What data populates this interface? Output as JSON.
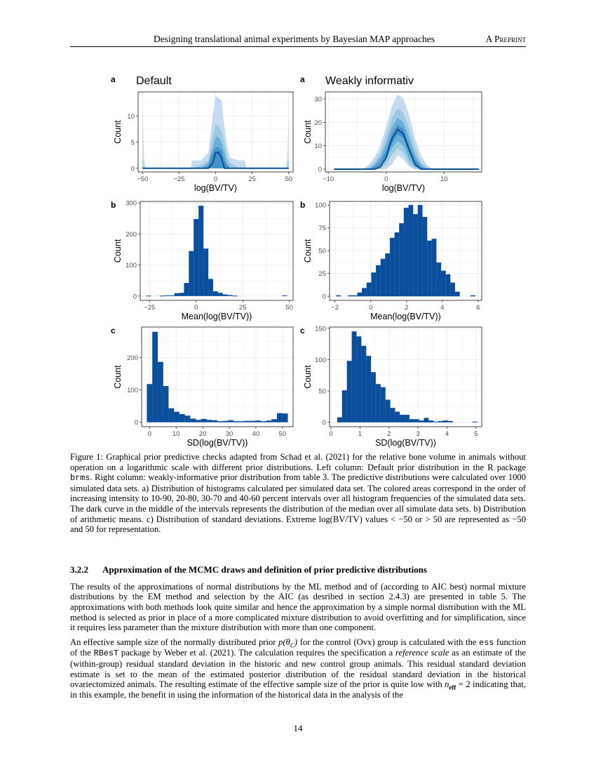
{
  "header": {
    "title": "Designing translational animal experiments by Bayesian MAP approaches",
    "tag": "A Preprint"
  },
  "colors": {
    "bar": "#0b4f9c",
    "bands": [
      "#c6dbef",
      "#9ecae1",
      "#6baed6",
      "#4292c6"
    ],
    "median": "#08519c"
  },
  "chart_data": [
    {
      "type": "area",
      "panel": "a",
      "title": "Default",
      "xlabel": "log(BV/TV)",
      "ylabel": "Count",
      "xlim": [
        -53,
        53
      ],
      "ylim": [
        -0.7,
        14.6
      ],
      "xticks": [
        -50,
        -25,
        0,
        25,
        50
      ],
      "xtick_labels": [
        "−50",
        "−25",
        "0",
        "25",
        "50"
      ],
      "yticks": [
        0,
        5,
        10
      ],
      "ytick_labels": [
        "0",
        "5",
        "10"
      ],
      "x": [
        -50,
        -49,
        -48,
        -17,
        -16,
        -10,
        -5,
        -2,
        0,
        2,
        4,
        6,
        8,
        10,
        16,
        20,
        21,
        48,
        49,
        50
      ],
      "bands": [
        {
          "interval": "10-90",
          "upper": [
            12,
            2,
            0,
            0,
            1.5,
            1.5,
            3,
            10,
            13.8,
            13.5,
            13,
            8,
            4,
            2,
            1.5,
            1.5,
            0,
            0,
            2,
            10
          ],
          "lower": [
            0,
            0,
            0,
            0,
            0,
            0,
            0,
            0,
            0,
            0,
            0,
            0,
            0,
            0,
            0,
            0,
            0,
            0,
            0,
            0
          ]
        },
        {
          "interval": "20-80",
          "upper": [
            2,
            0,
            0,
            0,
            0,
            0.7,
            1.5,
            6,
            8.5,
            8,
            7,
            5,
            2,
            1,
            0,
            0,
            0,
            0,
            0,
            2
          ],
          "lower": [
            0,
            0,
            0,
            0,
            0,
            0,
            0,
            0,
            0,
            0,
            0,
            0,
            0,
            0,
            0,
            0,
            0,
            0,
            0,
            0
          ]
        },
        {
          "interval": "30-70",
          "upper": [
            0,
            0,
            0,
            0,
            0,
            0,
            1,
            4,
            6,
            6,
            5,
            3,
            1,
            0,
            0,
            0,
            0,
            0,
            0,
            0
          ],
          "lower": [
            0,
            0,
            0,
            0,
            0,
            0,
            0,
            0,
            0,
            0,
            0,
            0,
            0,
            0,
            0,
            0,
            0,
            0,
            0,
            0
          ]
        },
        {
          "interval": "40-60",
          "upper": [
            0,
            0,
            0,
            0,
            0,
            0,
            0.5,
            3,
            4,
            4,
            3.5,
            1.5,
            0.5,
            0,
            0,
            0,
            0,
            0,
            0,
            0
          ],
          "lower": [
            0,
            0,
            0,
            0,
            0,
            0,
            0,
            0,
            0,
            0,
            0,
            0,
            0,
            0,
            0,
            0,
            0,
            0,
            0,
            0
          ]
        }
      ],
      "median": [
        0,
        0,
        0,
        0,
        0,
        0,
        0,
        1,
        3,
        3,
        2,
        0,
        0,
        0,
        0,
        0,
        0,
        0,
        0,
        0
      ]
    },
    {
      "type": "area",
      "panel": "a",
      "title": "Weakly informativ",
      "xlabel": "log(BV/TV)",
      "ylabel": "Count",
      "xlim": [
        -10.5,
        16.5
      ],
      "ylim": [
        -1.2,
        33
      ],
      "xticks": [
        -10,
        0,
        10
      ],
      "xtick_labels": [
        "−10",
        "0",
        "10"
      ],
      "yticks": [
        0,
        10,
        20,
        30
      ],
      "ytick_labels": [
        "0",
        "10",
        "20",
        "30"
      ],
      "x": [
        -9,
        -4,
        -3,
        -2,
        -1,
        0,
        1,
        2,
        3,
        4,
        5,
        6,
        7,
        8,
        16
      ],
      "bands": [
        {
          "interval": "10-90",
          "upper": [
            0,
            0,
            2,
            5,
            10,
            18,
            27,
            32,
            30,
            23,
            13,
            6,
            2,
            0,
            0
          ],
          "lower": [
            0,
            0,
            0,
            0,
            0,
            0,
            2,
            6,
            4,
            1,
            0,
            0,
            0,
            0,
            0
          ]
        },
        {
          "interval": "20-80",
          "upper": [
            0,
            0,
            1,
            3,
            7,
            14,
            22,
            26,
            24,
            17,
            9,
            3,
            1,
            0,
            0
          ],
          "lower": [
            0,
            0,
            0,
            0,
            0,
            2,
            6,
            9,
            7,
            2,
            0,
            0,
            0,
            0,
            0
          ]
        },
        {
          "interval": "30-70",
          "upper": [
            0,
            0,
            0,
            2,
            5,
            11,
            18,
            22,
            20,
            13,
            6,
            2,
            0,
            0,
            0
          ],
          "lower": [
            0,
            0,
            0,
            0,
            1,
            4,
            9,
            12,
            10,
            4,
            1,
            0,
            0,
            0,
            0
          ]
        },
        {
          "interval": "40-60",
          "upper": [
            0,
            0,
            0,
            1,
            3,
            8,
            15,
            19,
            17,
            10,
            4,
            1,
            0,
            0,
            0
          ],
          "lower": [
            0,
            0,
            0,
            0,
            2,
            6,
            11,
            15,
            13,
            7,
            2,
            0,
            0,
            0,
            0
          ]
        }
      ],
      "median": [
        0,
        0,
        0,
        0,
        1,
        5,
        13,
        17,
        15,
        8,
        2,
        0,
        0,
        0,
        0
      ]
    },
    {
      "type": "bar",
      "panel": "b",
      "title": "",
      "xlabel": "Mean(log(BV/TV))",
      "ylabel": "Count",
      "xlim": [
        -30,
        52
      ],
      "ylim": [
        -14,
        305
      ],
      "xticks": [
        -25,
        0,
        25,
        50
      ],
      "xtick_labels": [
        "−25",
        "0",
        "25",
        "50"
      ],
      "yticks": [
        0,
        100,
        200,
        300
      ],
      "ytick_labels": [
        "0",
        "100",
        "200",
        "300"
      ],
      "bin_width": 2.6,
      "x": [
        -25.5,
        -18.2,
        -15.6,
        -13,
        -10.4,
        -7.8,
        -5.2,
        -2.6,
        0,
        2.6,
        5.2,
        7.8,
        10.4,
        13,
        15.6,
        18.2,
        20.8,
        47.5
      ],
      "values": [
        1,
        1,
        2,
        2,
        9,
        10,
        42,
        145,
        248,
        291,
        153,
        55,
        15,
        10,
        5,
        3,
        1,
        2
      ]
    },
    {
      "type": "bar",
      "panel": "b",
      "title": "",
      "xlabel": "Mean(log(BV/TV))",
      "ylabel": "Count",
      "xlim": [
        -2.3,
        6.2
      ],
      "ylim": [
        -4.5,
        104
      ],
      "xticks": [
        -2,
        0,
        2,
        4,
        6
      ],
      "xtick_labels": [
        "−2",
        "0",
        "2",
        "4",
        "6"
      ],
      "yticks": [
        0,
        25,
        50,
        75,
        100
      ],
      "ytick_labels": [
        "0",
        "25",
        "50",
        "75",
        "100"
      ],
      "bin_width": 0.26,
      "x": [
        -1.8,
        -1.14,
        -0.88,
        -0.62,
        -0.36,
        -0.1,
        0.16,
        0.42,
        0.68,
        0.94,
        1.2,
        1.46,
        1.72,
        1.98,
        2.24,
        2.5,
        2.76,
        3.02,
        3.28,
        3.54,
        3.8,
        4.06,
        4.32,
        4.58,
        4.84,
        5.7
      ],
      "values": [
        1,
        1,
        1,
        4,
        9,
        15,
        26,
        34,
        41,
        47,
        64,
        70,
        80,
        97,
        100,
        90,
        100,
        87,
        61,
        63,
        37,
        28,
        24,
        15,
        5,
        1
      ]
    },
    {
      "type": "bar",
      "panel": "c",
      "title": "",
      "xlabel": "SD(log(BV/TV))",
      "ylabel": "Count",
      "xlim": [
        -3,
        54
      ],
      "ylim": [
        -14,
        295
      ],
      "xticks": [
        0,
        10,
        20,
        30,
        40,
        50
      ],
      "xtick_labels": [
        "0",
        "10",
        "20",
        "30",
        "40",
        "50"
      ],
      "yticks": [
        0,
        100,
        200
      ],
      "ytick_labels": [
        "0",
        "100",
        "200"
      ],
      "bin_width": 2.04,
      "x": [
        0,
        2.04,
        4.08,
        6.12,
        8.16,
        10.2,
        12.24,
        14.28,
        16.32,
        18.36,
        20.4,
        22.44,
        24.48,
        26.52,
        28.56,
        30.6,
        32.64,
        34.68,
        36.72,
        38.76,
        40.8,
        42.84,
        44.88,
        46.92,
        48.96,
        51
      ],
      "values": [
        118,
        280,
        187,
        112,
        43,
        32,
        25,
        20,
        11,
        7,
        10,
        7,
        6,
        3,
        4,
        6,
        3,
        3,
        4,
        4,
        5,
        3,
        5,
        9,
        28,
        27
      ]
    },
    {
      "type": "bar",
      "panel": "c",
      "title": "",
      "xlabel": "SD(log(BV/TV))",
      "ylabel": "Count",
      "xlim": [
        -0.05,
        5.2
      ],
      "ylim": [
        -7,
        152
      ],
      "xticks": [
        0,
        1,
        2,
        3,
        4,
        5
      ],
      "xtick_labels": [
        "0",
        "1",
        "2",
        "3",
        "4",
        "5"
      ],
      "yticks": [
        0,
        50,
        100,
        150
      ],
      "ytick_labels": [
        "0",
        "50",
        "100",
        "150"
      ],
      "bin_width": 0.166,
      "x": [
        0.3,
        0.466,
        0.632,
        0.798,
        0.964,
        1.13,
        1.296,
        1.462,
        1.628,
        1.794,
        1.96,
        2.126,
        2.292,
        2.458,
        2.624,
        2.79,
        2.956,
        3.122,
        3.288,
        3.454,
        3.62,
        3.786,
        3.952,
        4.118,
        4.97
      ],
      "values": [
        8,
        51,
        98,
        145,
        137,
        122,
        106,
        80,
        61,
        56,
        36,
        23,
        17,
        12,
        12,
        5,
        5,
        3,
        7,
        3,
        1,
        2,
        3,
        2,
        1
      ]
    }
  ],
  "caption": "Figure 1: Graphical prior predictive checks adapted from Schad et al. (2021) for the relative bone volume in animals without operation on a logarithmic scale with different prior distributions. Left column: Default prior distribution in the R package ",
  "caption_code": "brms",
  "caption_rest": ". Right column: weakly-informative prior distribution from table 3. The predictive distributions were calculated over 1000 simulated data sets. a) Distribution of histograms calculated per simulated data set. The colored areas correspond in the order of increasing intensity to 10-90, 20-80, 30-70 and 40-60 percent intervals over all histogram frequencies of the simulated data sets. The dark curve in the middle of the intervals represents the distribution of the median over all simulate data sets. b) Distribution of arithmetic means. c) Distribution of standard deviations. Extreme log(BV/TV) values < −50 or > 50 are represented as −50 and 50 for representation.",
  "section": {
    "number": "3.2.2",
    "title": "Approximation of the MCMC draws and definition of prior predictive distributions"
  },
  "para1": "The results of the approximations of normal distributions by the ML method and of (according to AIC best) normal mixture distributions by the EM method and selection by the AIC (as desribed in section 2.4.3) are presented in table 5. The approximations with both methods look quite similar and hence the approximation by a simple normal distribution with the ML method is selected as prior in place of a more complicated mixture distribution to avoid overfitting and for simplification, since it requires less parameter than the mixture distribution with more than one component.",
  "para2": {
    "s1": "An effective sample size of the normally distributed prior ",
    "math1": "p(θ",
    "math1_sub": "C",
    "math1_end": ")",
    "s2": " for the control (Ovx) group is calculated with the ",
    "code1": "ess",
    "s3": " function of the ",
    "code2": "RBesT",
    "s4": " package by Weber et al. (2021). The calculation requires the specification a ",
    "italic": "reference scale",
    "s5": " as an estimate of the (within-group) residual standard deviation in the historic and new control group animals. This residual standard deviation estimate is set to the mean of the estimated posterior distribution of the residual standard deviation in the historical ovariectomized animals. The resulting estimate of the effective sample size of the prior is quite low with ",
    "math2": "n",
    "math2_sub": "eff",
    "math2_rest": " = 2",
    "s6": " indicating that, in this example, the benefit in using the information of the historical data in the analysis of the"
  },
  "page_number": "14"
}
